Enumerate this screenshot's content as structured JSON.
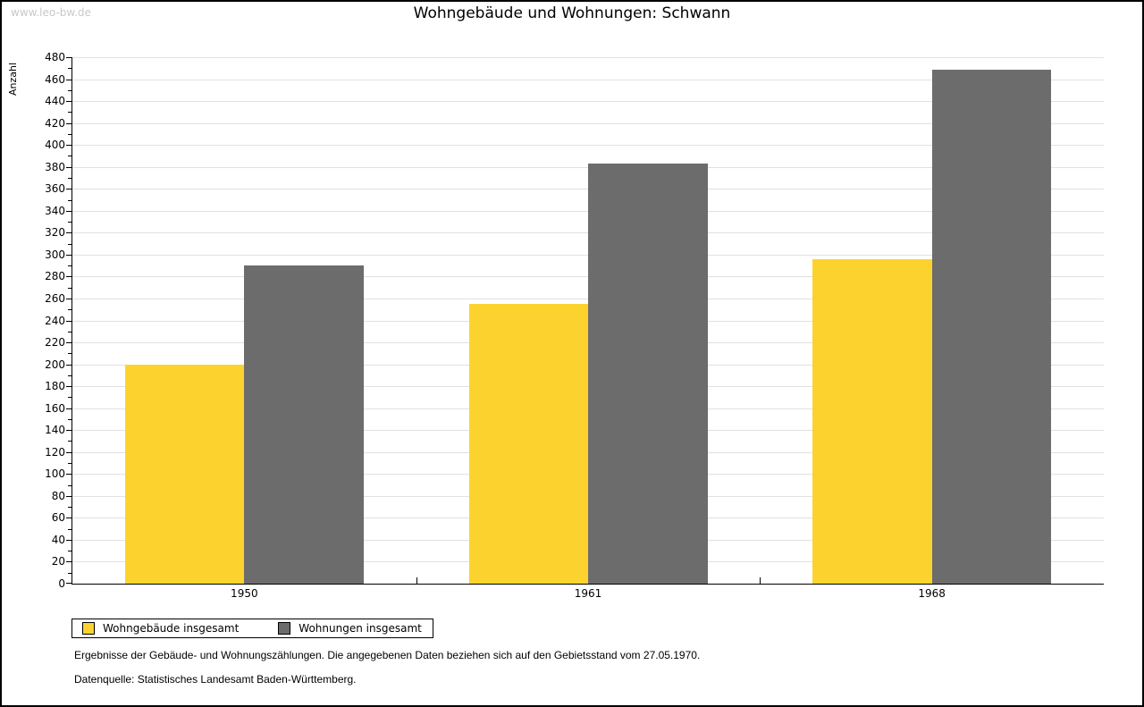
{
  "watermark": "www.leo-bw.de",
  "title": "Wohngebäude und Wohnungen: Schwann",
  "chart_data": {
    "type": "bar",
    "title": "Wohngebäude und Wohnungen: Schwann",
    "categories": [
      "1950",
      "1961",
      "1968"
    ],
    "series": [
      {
        "name": "Wohngebäude insgesamt",
        "color": "#fcd32e",
        "values": [
          200,
          255,
          296
        ]
      },
      {
        "name": "Wohnungen insgesamt",
        "color": "#6c6c6c",
        "values": [
          290,
          383,
          469
        ]
      }
    ],
    "xlabel": "",
    "ylabel": "Anzahl",
    "ylim": [
      0,
      480
    ],
    "ytick_step": 20,
    "yminor_step": 10,
    "grid": true,
    "gridline_color": "#e1e1e1",
    "legend_position": "bottom-left"
  },
  "footnotes": {
    "line1": "Ergebnisse der Gebäude- und Wohnungszählungen. Die angegebenen Daten beziehen sich auf den Gebietsstand vom 27.05.1970.",
    "line2": "Datenquelle: Statistisches Landesamt Baden-Württemberg."
  }
}
